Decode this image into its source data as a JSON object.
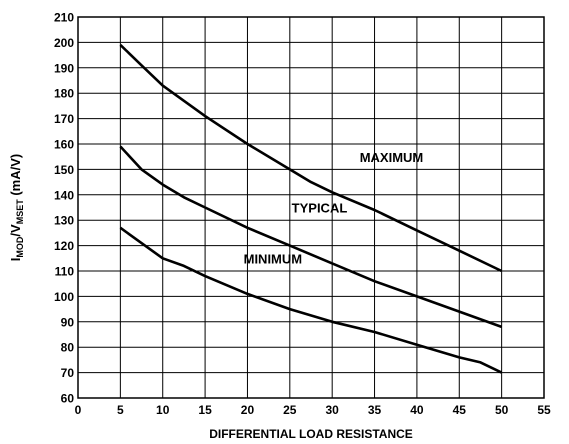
{
  "chart_data": {
    "type": "line",
    "title": "",
    "xlabel": "DIFFERENTIAL LOAD RESISTANCE",
    "ylabel": {
      "parts": [
        {
          "text": "I",
          "sub": false
        },
        {
          "text": "MOD",
          "sub": true
        },
        {
          "text": "/V",
          "sub": false
        },
        {
          "text": "MSET",
          "sub": true
        },
        {
          "text": " (mA/V)",
          "sub": false
        }
      ]
    },
    "xlim": [
      0,
      55
    ],
    "ylim": [
      60,
      210
    ],
    "xticks": [
      0,
      5,
      10,
      15,
      20,
      25,
      30,
      35,
      40,
      45,
      50,
      55
    ],
    "yticks": [
      60,
      70,
      80,
      90,
      100,
      110,
      120,
      130,
      140,
      150,
      160,
      170,
      180,
      190,
      200,
      210
    ],
    "grid": true,
    "legend": "none",
    "series": [
      {
        "name": "MAXIMUM",
        "x": [
          5,
          7.5,
          10,
          12.5,
          15,
          20,
          25,
          27.5,
          30,
          35,
          40,
          45,
          50
        ],
        "y": [
          199,
          191,
          183,
          177,
          171,
          160,
          150,
          145,
          141,
          134,
          126,
          118,
          110
        ]
      },
      {
        "name": "TYPICAL",
        "x": [
          5,
          7.5,
          10,
          12.5,
          15,
          20,
          25,
          30,
          35,
          40,
          45,
          50
        ],
        "y": [
          159,
          150,
          144,
          139,
          135,
          127,
          120,
          113,
          106,
          100,
          94,
          88
        ]
      },
      {
        "name": "MINIMUM",
        "x": [
          5,
          7.5,
          10,
          12.5,
          15,
          20,
          25,
          30,
          35,
          40,
          45,
          47.5,
          50
        ],
        "y": [
          127,
          121,
          115,
          112,
          108,
          101,
          95,
          90,
          86,
          81,
          76,
          74,
          70
        ]
      }
    ]
  }
}
